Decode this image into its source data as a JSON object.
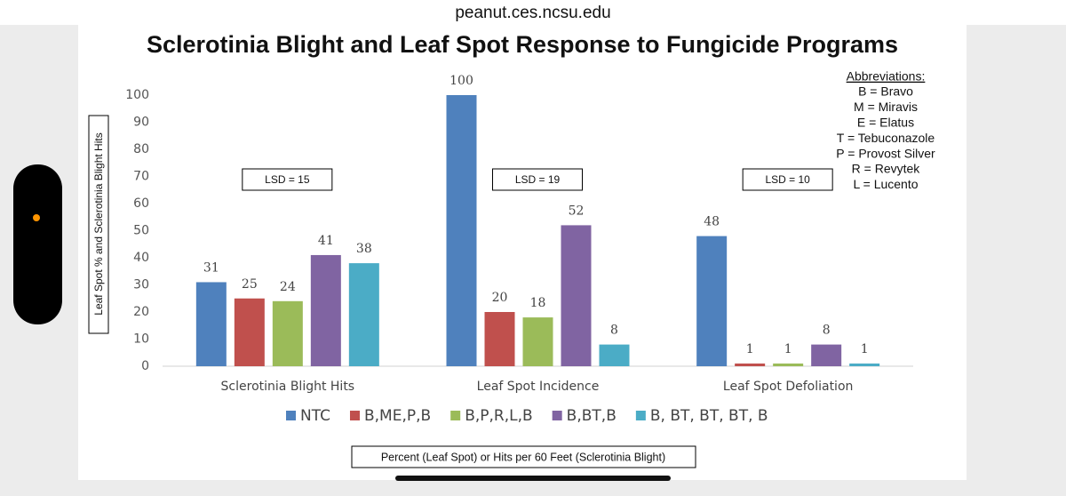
{
  "browser": {
    "url": "peanut.ces.ncsu.edu"
  },
  "chart_data": {
    "type": "bar",
    "title": "Sclerotinia Blight and Leaf Spot Response to Fungicide Programs",
    "y_label": "Leaf Spot % and Sclerotinia Blight Hits",
    "x_label": "Percent (Leaf Spot) or Hits per 60 Feet (Sclerotinia Blight)",
    "categories": [
      "Sclerotinia Blight Hits",
      "Leaf Spot Incidence",
      "Leaf Spot Defoliation"
    ],
    "series": [
      {
        "name": "NTC",
        "color": "#4f81bd",
        "values": [
          31,
          100,
          48
        ]
      },
      {
        "name": "B,ME,P,B",
        "color": "#c0504d",
        "values": [
          25,
          20,
          1
        ]
      },
      {
        "name": "B,P,R,L,B",
        "color": "#9bbb59",
        "values": [
          24,
          18,
          1
        ]
      },
      {
        "name": "B,BT,B",
        "color": "#8064a2",
        "values": [
          41,
          52,
          8
        ]
      },
      {
        "name": "B, BT, BT, BT, B",
        "color": "#4bacc6",
        "values": [
          38,
          8,
          1
        ]
      }
    ],
    "ylim": [
      0,
      100
    ],
    "yticks": [
      0,
      10,
      20,
      30,
      40,
      50,
      60,
      70,
      80,
      90,
      100
    ],
    "grid": false,
    "annotations": [
      "LSD = 15",
      "LSD = 19",
      "LSD = 10"
    ],
    "abbreviations": {
      "title": "Abbreviations:",
      "items": [
        "B = Bravo",
        "M = Miravis",
        "E = Elatus",
        "T = Tebuconazole",
        "P = Provost Silver",
        "R = Revytek",
        "L = Lucento"
      ]
    }
  }
}
